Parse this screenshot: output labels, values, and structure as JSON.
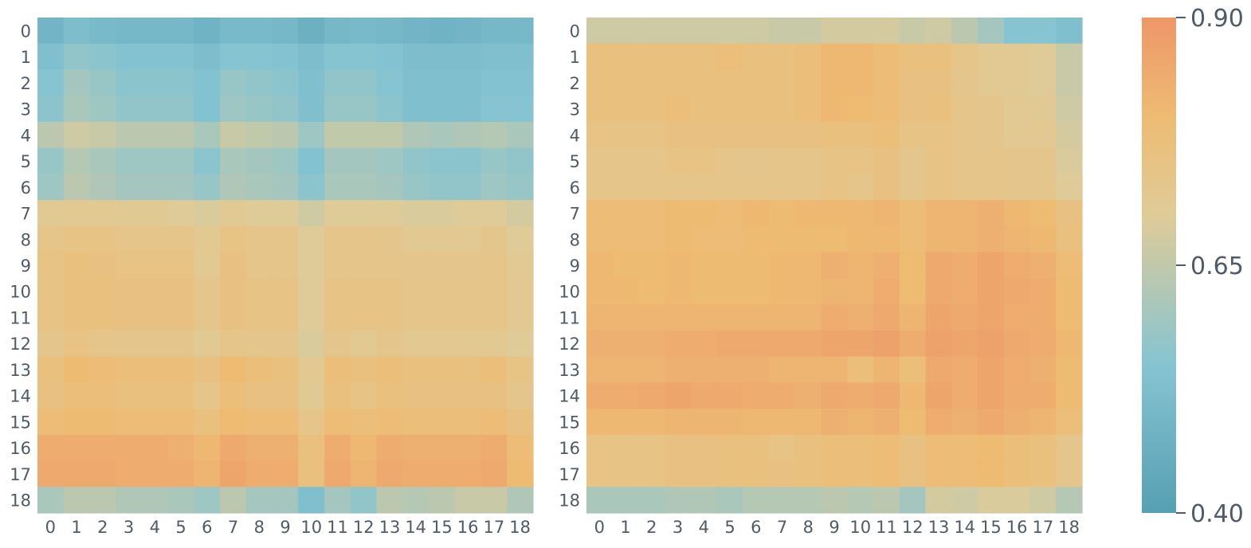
{
  "chart_data": [
    {
      "type": "heatmap",
      "title": "",
      "xlabel": "",
      "ylabel": "",
      "x_categories": [
        "0",
        "1",
        "2",
        "3",
        "4",
        "5",
        "6",
        "7",
        "8",
        "9",
        "10",
        "11",
        "12",
        "13",
        "14",
        "15",
        "16",
        "17",
        "18"
      ],
      "y_categories": [
        "0",
        "1",
        "2",
        "3",
        "4",
        "5",
        "6",
        "7",
        "8",
        "9",
        "10",
        "11",
        "12",
        "13",
        "14",
        "15",
        "16",
        "17",
        "18"
      ],
      "values": [
        [
          0.49,
          0.52,
          0.51,
          0.5,
          0.5,
          0.5,
          0.48,
          0.51,
          0.51,
          0.5,
          0.47,
          0.5,
          0.51,
          0.5,
          0.49,
          0.48,
          0.49,
          0.5,
          0.5
        ],
        [
          0.53,
          0.57,
          0.56,
          0.54,
          0.54,
          0.54,
          0.52,
          0.55,
          0.55,
          0.54,
          0.52,
          0.55,
          0.55,
          0.54,
          0.52,
          0.52,
          0.52,
          0.53,
          0.53
        ],
        [
          0.55,
          0.6,
          0.58,
          0.56,
          0.56,
          0.56,
          0.54,
          0.58,
          0.57,
          0.56,
          0.53,
          0.57,
          0.57,
          0.55,
          0.53,
          0.53,
          0.53,
          0.54,
          0.54
        ],
        [
          0.56,
          0.61,
          0.59,
          0.57,
          0.57,
          0.57,
          0.54,
          0.59,
          0.58,
          0.57,
          0.53,
          0.58,
          0.58,
          0.56,
          0.53,
          0.53,
          0.53,
          0.55,
          0.55
        ],
        [
          0.64,
          0.67,
          0.66,
          0.64,
          0.64,
          0.64,
          0.61,
          0.66,
          0.65,
          0.64,
          0.59,
          0.65,
          0.65,
          0.65,
          0.62,
          0.61,
          0.62,
          0.63,
          0.61
        ],
        [
          0.58,
          0.63,
          0.61,
          0.59,
          0.59,
          0.59,
          0.56,
          0.61,
          0.6,
          0.59,
          0.54,
          0.6,
          0.6,
          0.59,
          0.57,
          0.56,
          0.56,
          0.58,
          0.57
        ],
        [
          0.59,
          0.64,
          0.62,
          0.6,
          0.6,
          0.6,
          0.58,
          0.62,
          0.61,
          0.6,
          0.56,
          0.61,
          0.61,
          0.6,
          0.58,
          0.57,
          0.57,
          0.59,
          0.58
        ],
        [
          0.71,
          0.72,
          0.72,
          0.71,
          0.71,
          0.7,
          0.69,
          0.71,
          0.7,
          0.7,
          0.67,
          0.7,
          0.7,
          0.7,
          0.69,
          0.69,
          0.7,
          0.7,
          0.68
        ],
        [
          0.74,
          0.75,
          0.75,
          0.74,
          0.74,
          0.74,
          0.72,
          0.75,
          0.74,
          0.74,
          0.7,
          0.74,
          0.74,
          0.73,
          0.72,
          0.72,
          0.72,
          0.73,
          0.7
        ],
        [
          0.75,
          0.77,
          0.76,
          0.75,
          0.75,
          0.75,
          0.72,
          0.76,
          0.74,
          0.74,
          0.7,
          0.74,
          0.74,
          0.74,
          0.73,
          0.73,
          0.73,
          0.74,
          0.71
        ],
        [
          0.75,
          0.77,
          0.77,
          0.76,
          0.76,
          0.76,
          0.73,
          0.76,
          0.75,
          0.75,
          0.7,
          0.75,
          0.75,
          0.75,
          0.74,
          0.74,
          0.74,
          0.74,
          0.72
        ],
        [
          0.75,
          0.77,
          0.77,
          0.76,
          0.76,
          0.76,
          0.73,
          0.76,
          0.75,
          0.75,
          0.7,
          0.75,
          0.75,
          0.75,
          0.74,
          0.74,
          0.74,
          0.74,
          0.72
        ],
        [
          0.73,
          0.75,
          0.74,
          0.73,
          0.73,
          0.73,
          0.71,
          0.74,
          0.73,
          0.73,
          0.69,
          0.73,
          0.72,
          0.73,
          0.72,
          0.72,
          0.72,
          0.72,
          0.7
        ],
        [
          0.77,
          0.8,
          0.79,
          0.78,
          0.78,
          0.78,
          0.76,
          0.8,
          0.78,
          0.77,
          0.72,
          0.78,
          0.77,
          0.78,
          0.77,
          0.77,
          0.77,
          0.78,
          0.75
        ],
        [
          0.76,
          0.78,
          0.78,
          0.77,
          0.77,
          0.77,
          0.74,
          0.78,
          0.76,
          0.76,
          0.71,
          0.77,
          0.75,
          0.77,
          0.76,
          0.76,
          0.76,
          0.76,
          0.73
        ],
        [
          0.79,
          0.8,
          0.8,
          0.79,
          0.79,
          0.79,
          0.77,
          0.8,
          0.79,
          0.79,
          0.74,
          0.79,
          0.78,
          0.79,
          0.78,
          0.78,
          0.78,
          0.79,
          0.76
        ],
        [
          0.84,
          0.84,
          0.84,
          0.84,
          0.84,
          0.83,
          0.81,
          0.85,
          0.83,
          0.83,
          0.77,
          0.84,
          0.81,
          0.84,
          0.83,
          0.83,
          0.83,
          0.84,
          0.79
        ],
        [
          0.85,
          0.85,
          0.85,
          0.84,
          0.84,
          0.84,
          0.82,
          0.86,
          0.84,
          0.84,
          0.77,
          0.85,
          0.82,
          0.85,
          0.84,
          0.84,
          0.84,
          0.85,
          0.8
        ],
        [
          0.61,
          0.64,
          0.64,
          0.62,
          0.62,
          0.61,
          0.59,
          0.64,
          0.6,
          0.6,
          0.53,
          0.6,
          0.57,
          0.64,
          0.63,
          0.64,
          0.66,
          0.66,
          0.62
        ]
      ],
      "color_range": [
        0.4,
        0.9
      ]
    },
    {
      "type": "heatmap",
      "title": "",
      "xlabel": "",
      "ylabel": "",
      "x_categories": [
        "0",
        "1",
        "2",
        "3",
        "4",
        "5",
        "6",
        "7",
        "8",
        "9",
        "10",
        "11",
        "12",
        "13",
        "14",
        "15",
        "16",
        "17",
        "18"
      ],
      "y_categories": [
        "0",
        "1",
        "2",
        "3",
        "4",
        "5",
        "6",
        "7",
        "8",
        "9",
        "10",
        "11",
        "12",
        "13",
        "14",
        "15",
        "16",
        "17",
        "18"
      ],
      "values": [
        [
          0.67,
          0.67,
          0.67,
          0.67,
          0.67,
          0.67,
          0.67,
          0.66,
          0.66,
          0.68,
          0.68,
          0.68,
          0.66,
          0.67,
          0.64,
          0.6,
          0.55,
          0.55,
          0.53
        ],
        [
          0.77,
          0.77,
          0.77,
          0.77,
          0.77,
          0.78,
          0.77,
          0.77,
          0.78,
          0.81,
          0.81,
          0.79,
          0.77,
          0.77,
          0.74,
          0.72,
          0.71,
          0.7,
          0.66
        ],
        [
          0.77,
          0.77,
          0.77,
          0.77,
          0.77,
          0.77,
          0.77,
          0.77,
          0.78,
          0.81,
          0.81,
          0.79,
          0.76,
          0.76,
          0.73,
          0.72,
          0.71,
          0.7,
          0.66
        ],
        [
          0.77,
          0.77,
          0.77,
          0.78,
          0.77,
          0.77,
          0.77,
          0.77,
          0.78,
          0.81,
          0.8,
          0.79,
          0.76,
          0.77,
          0.74,
          0.73,
          0.72,
          0.71,
          0.67
        ],
        [
          0.75,
          0.75,
          0.75,
          0.76,
          0.76,
          0.76,
          0.76,
          0.76,
          0.76,
          0.77,
          0.77,
          0.78,
          0.75,
          0.75,
          0.74,
          0.73,
          0.72,
          0.72,
          0.68
        ],
        [
          0.74,
          0.74,
          0.74,
          0.75,
          0.75,
          0.74,
          0.73,
          0.74,
          0.74,
          0.75,
          0.75,
          0.76,
          0.73,
          0.75,
          0.74,
          0.74,
          0.73,
          0.73,
          0.69
        ],
        [
          0.74,
          0.74,
          0.74,
          0.74,
          0.74,
          0.74,
          0.74,
          0.74,
          0.74,
          0.75,
          0.74,
          0.76,
          0.73,
          0.75,
          0.74,
          0.74,
          0.73,
          0.73,
          0.7
        ],
        [
          0.79,
          0.79,
          0.79,
          0.8,
          0.8,
          0.79,
          0.81,
          0.8,
          0.81,
          0.81,
          0.81,
          0.82,
          0.79,
          0.82,
          0.82,
          0.83,
          0.81,
          0.8,
          0.76
        ],
        [
          0.79,
          0.79,
          0.79,
          0.8,
          0.79,
          0.79,
          0.8,
          0.8,
          0.8,
          0.8,
          0.81,
          0.81,
          0.79,
          0.82,
          0.82,
          0.83,
          0.82,
          0.81,
          0.77
        ],
        [
          0.81,
          0.8,
          0.8,
          0.81,
          0.8,
          0.8,
          0.8,
          0.81,
          0.81,
          0.83,
          0.82,
          0.83,
          0.8,
          0.85,
          0.84,
          0.86,
          0.84,
          0.83,
          0.79
        ],
        [
          0.81,
          0.81,
          0.8,
          0.81,
          0.8,
          0.8,
          0.8,
          0.81,
          0.81,
          0.82,
          0.82,
          0.84,
          0.8,
          0.85,
          0.84,
          0.86,
          0.85,
          0.84,
          0.8
        ],
        [
          0.82,
          0.82,
          0.82,
          0.82,
          0.82,
          0.82,
          0.82,
          0.82,
          0.82,
          0.84,
          0.83,
          0.85,
          0.82,
          0.86,
          0.85,
          0.86,
          0.84,
          0.84,
          0.8
        ],
        [
          0.83,
          0.83,
          0.83,
          0.84,
          0.84,
          0.85,
          0.85,
          0.85,
          0.85,
          0.86,
          0.86,
          0.87,
          0.84,
          0.87,
          0.86,
          0.87,
          0.85,
          0.84,
          0.81
        ],
        [
          0.82,
          0.82,
          0.82,
          0.83,
          0.83,
          0.83,
          0.83,
          0.82,
          0.82,
          0.82,
          0.78,
          0.82,
          0.78,
          0.85,
          0.84,
          0.86,
          0.84,
          0.83,
          0.8
        ],
        [
          0.84,
          0.84,
          0.85,
          0.86,
          0.85,
          0.85,
          0.84,
          0.84,
          0.83,
          0.85,
          0.84,
          0.85,
          0.81,
          0.86,
          0.84,
          0.86,
          0.84,
          0.84,
          0.8
        ],
        [
          0.81,
          0.81,
          0.81,
          0.82,
          0.82,
          0.82,
          0.81,
          0.81,
          0.81,
          0.83,
          0.82,
          0.83,
          0.8,
          0.84,
          0.83,
          0.85,
          0.83,
          0.82,
          0.78
        ],
        [
          0.75,
          0.75,
          0.75,
          0.76,
          0.76,
          0.77,
          0.77,
          0.75,
          0.77,
          0.78,
          0.78,
          0.79,
          0.76,
          0.79,
          0.79,
          0.8,
          0.78,
          0.77,
          0.73
        ],
        [
          0.75,
          0.75,
          0.75,
          0.76,
          0.76,
          0.77,
          0.77,
          0.76,
          0.77,
          0.78,
          0.78,
          0.79,
          0.76,
          0.79,
          0.79,
          0.8,
          0.78,
          0.77,
          0.73
        ],
        [
          0.61,
          0.61,
          0.61,
          0.62,
          0.62,
          0.61,
          0.63,
          0.63,
          0.63,
          0.64,
          0.63,
          0.64,
          0.6,
          0.68,
          0.67,
          0.69,
          0.69,
          0.67,
          0.63
        ]
      ],
      "color_range": [
        0.4,
        0.9
      ]
    }
  ],
  "colorbar": {
    "ticks": [
      {
        "value": 0.9,
        "label": "0.90"
      },
      {
        "value": 0.65,
        "label": "0.65"
      },
      {
        "value": 0.4,
        "label": "0.40"
      }
    ],
    "colors": {
      "low": "#579fb3",
      "mid_low": "#86c4d2",
      "mid": "#dfcb98",
      "mid_high": "#eebb73",
      "high": "#ee9768"
    }
  }
}
